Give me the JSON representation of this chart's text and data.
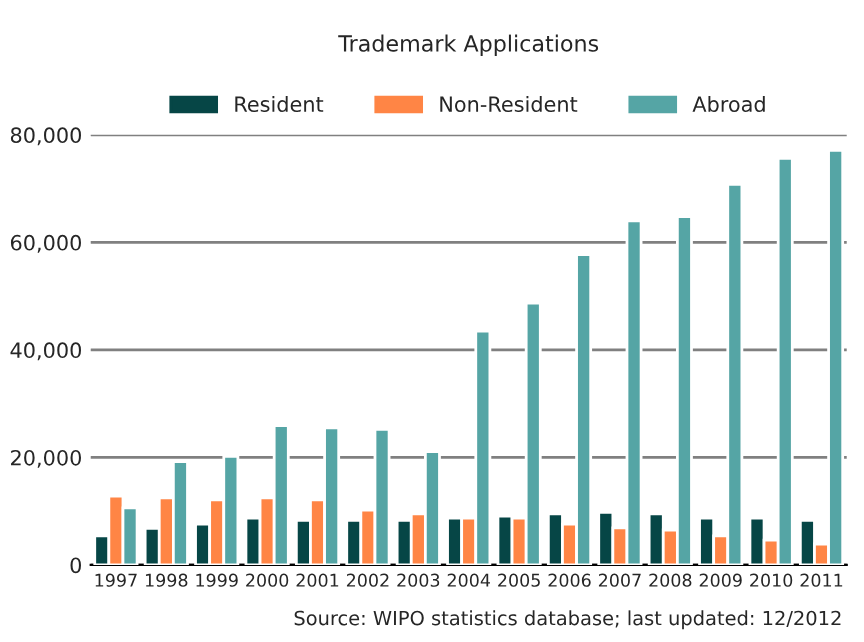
{
  "chart_data": {
    "type": "bar",
    "title": "Trademark Applications",
    "categories": [
      "1997",
      "1998",
      "1999",
      "2000",
      "2001",
      "2002",
      "2003",
      "2004",
      "2005",
      "2006",
      "2007",
      "2008",
      "2009",
      "2010",
      "2011"
    ],
    "series": [
      {
        "name": "Resident",
        "color": "#064646",
        "values": [
          5400,
          6800,
          7600,
          8700,
          8300,
          8300,
          8300,
          8700,
          9100,
          9500,
          9800,
          9500,
          8700,
          8700,
          8300
        ]
      },
      {
        "name": "Non-Resident",
        "color": "#ff8545",
        "values": [
          12800,
          12500,
          12100,
          12500,
          12100,
          10200,
          9500,
          8700,
          8700,
          7600,
          6900,
          6500,
          5400,
          4600,
          3900
        ]
      },
      {
        "name": "Abroad",
        "color": "#55a5a5",
        "values": [
          10600,
          19200,
          20200,
          25900,
          25500,
          25200,
          21100,
          43500,
          48700,
          57700,
          64000,
          64800,
          70800,
          75600,
          77100
        ]
      }
    ],
    "ylim": [
      0,
      80000
    ],
    "yticks": [
      {
        "value": 0,
        "label": "0"
      },
      {
        "value": 20000,
        "label": "20,000"
      },
      {
        "value": 40000,
        "label": "40,000"
      },
      {
        "value": 60000,
        "label": "60,000"
      },
      {
        "value": 80000,
        "label": "80,000"
      }
    ],
    "grid": "y",
    "legend": "top",
    "annotations": [
      "Source: WIPO statistics database; last updated: 12/2012"
    ]
  }
}
